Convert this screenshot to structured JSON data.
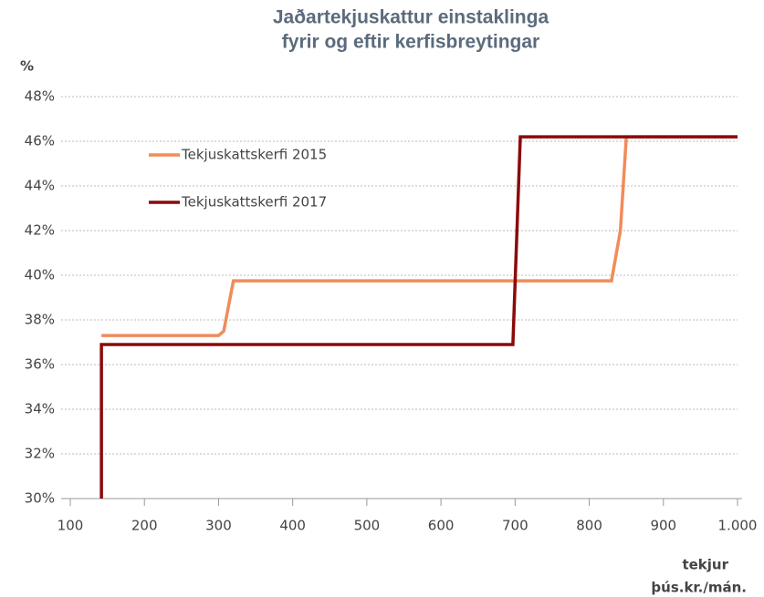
{
  "chart_data": {
    "type": "line",
    "title": [
      "Jaðartekjuskattur einstaklinga",
      "fyrir og eftir kerfisbreytingar"
    ],
    "y_label": "%",
    "x_label": [
      "tekjur",
      "þús.kr./mán."
    ],
    "xlim": [
      100,
      1000
    ],
    "xticks": [
      100,
      200,
      300,
      400,
      500,
      600,
      700,
      800,
      900,
      {
        "value": 1000,
        "label": "1.000"
      }
    ],
    "ylim": [
      30,
      48
    ],
    "yticks": [
      {
        "value": 30,
        "label": "30%"
      },
      {
        "value": 32,
        "label": "32%"
      },
      {
        "value": 34,
        "label": "34%"
      },
      {
        "value": 36,
        "label": "36%"
      },
      {
        "value": 38,
        "label": "38%"
      },
      {
        "value": 40,
        "label": "40%"
      },
      {
        "value": 42,
        "label": "42%"
      },
      {
        "value": 44,
        "label": "44%"
      },
      {
        "value": 46,
        "label": "46%"
      },
      {
        "value": 48,
        "label": "48%"
      }
    ],
    "grid": true,
    "series": [
      {
        "name": "Tekjuskattskerfi 2015",
        "color": "#f08c5a",
        "x": [
          142,
          300,
          307,
          320,
          830,
          842,
          850,
          1000
        ],
        "values": [
          37.3,
          37.3,
          37.5,
          39.75,
          39.75,
          42,
          46.2,
          46.2
        ]
      },
      {
        "name": "Tekjuskattskerfi 2017",
        "color": "#8b0a0a",
        "x": [
          142,
          142,
          697,
          707,
          1000
        ],
        "values": [
          30,
          36.9,
          36.9,
          46.2,
          46.2
        ]
      }
    ]
  }
}
